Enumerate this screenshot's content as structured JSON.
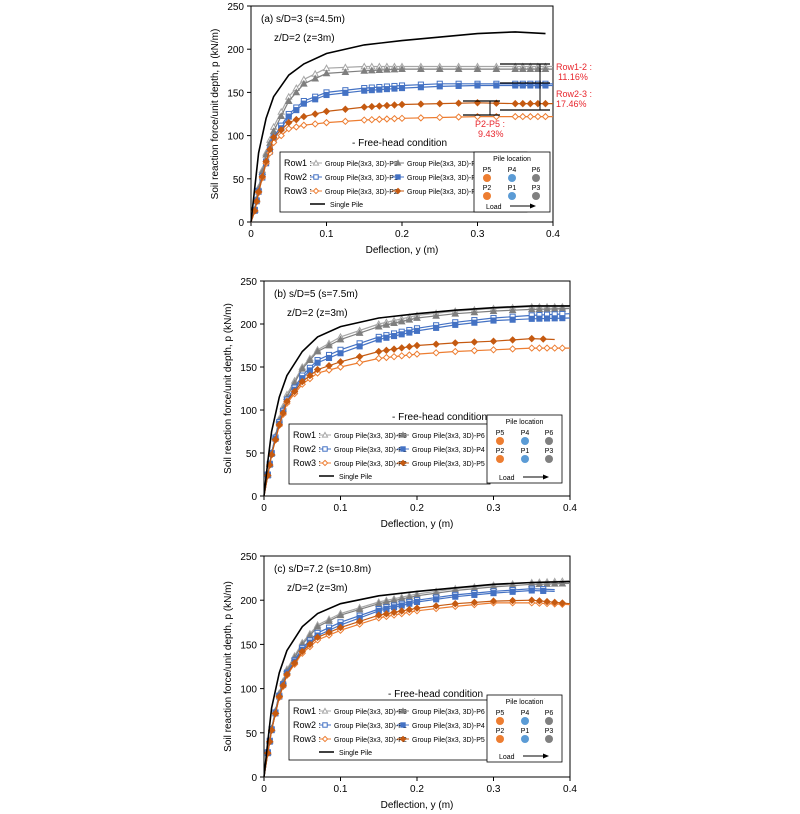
{
  "common": {
    "xlabel": "Deflection, y (m)",
    "ylabel": "Soil reaction force/unit depth, p (kN/m)",
    "condition": "- Free-head condition",
    "row_labels": [
      "Row1 :",
      "Row2 :",
      "Row3 :"
    ],
    "pile_location_title": "Pile location",
    "load_label": "Load",
    "pile_grid": [
      [
        "P5",
        "P4",
        "P6"
      ],
      [
        "P2",
        "P1",
        "P3"
      ]
    ],
    "colors": {
      "gray_light": "#a6a6a6",
      "gray_dark": "#7f7f7f",
      "blue": "#4472c4",
      "orange": "#ed7d31",
      "orange_dark": "#c55a11",
      "black": "#000000",
      "red": "#e8262d",
      "pile_orange": "#ed7d31",
      "pile_blue": "#5b9bd5",
      "pile_gray": "#808080"
    }
  },
  "panels": [
    {
      "title": "(a) s/D=3 (s=4.5m)",
      "depth": "z/D=2 (z=3m)",
      "annotations": [
        "Row1-2 :",
        "11.16%",
        "Row2-3 :",
        "17.46%",
        "P2-P5 :",
        "9.43%"
      ]
    },
    {
      "title": "(b) s/D=5 (s=7.5m)",
      "depth": "z/D=2 (z=3m)",
      "annotations": []
    },
    {
      "title": "(c) s/D=7.2 (s=10.8m)",
      "depth": "z/D=2 (z=3m)",
      "annotations": []
    }
  ],
  "chart_data": [
    {
      "type": "line",
      "title": "(a) s/D=3 (s=4.5m)",
      "xlabel": "Deflection, y (m)",
      "ylabel": "Soil reaction force/unit depth, p (kN/m)",
      "xlim": [
        0,
        0.4
      ],
      "ylim": [
        0,
        250
      ],
      "xticks": [
        "0",
        "0.1",
        "0.2",
        "0.3",
        "0.4"
      ],
      "yticks": [
        "0",
        "50",
        "100",
        "150",
        "200",
        "250"
      ],
      "series": [
        {
          "name": "Group Pile(3x3, 3D)-P3",
          "marker": "triangle-open",
          "color": "#a6a6a6",
          "x": [
            0,
            0.005,
            0.01,
            0.02,
            0.03,
            0.05,
            0.07,
            0.1,
            0.15,
            0.2,
            0.25,
            0.3,
            0.35,
            0.4
          ],
          "y": [
            0,
            15,
            40,
            80,
            110,
            145,
            165,
            178,
            180,
            180,
            180,
            180,
            180,
            180
          ]
        },
        {
          "name": "Group Pile(3x3, 3D)-P6",
          "marker": "triangle",
          "color": "#7f7f7f",
          "x": [
            0,
            0.005,
            0.01,
            0.02,
            0.03,
            0.05,
            0.07,
            0.1,
            0.15,
            0.2,
            0.25,
            0.3,
            0.35,
            0.4
          ],
          "y": [
            0,
            14,
            38,
            78,
            105,
            140,
            160,
            172,
            175,
            177,
            177,
            177,
            177,
            177
          ]
        },
        {
          "name": "Group Pile(3x3, 3D)-P1",
          "marker": "square-open",
          "color": "#4472c4",
          "x": [
            0,
            0.005,
            0.01,
            0.02,
            0.03,
            0.05,
            0.07,
            0.1,
            0.15,
            0.2,
            0.25,
            0.3,
            0.35,
            0.4
          ],
          "y": [
            0,
            14,
            36,
            70,
            98,
            125,
            140,
            150,
            155,
            158,
            160,
            160,
            160,
            160
          ]
        },
        {
          "name": "Group Pile(3x3, 3D)-P4",
          "marker": "square",
          "color": "#4472c4",
          "x": [
            0,
            0.005,
            0.01,
            0.02,
            0.03,
            0.05,
            0.07,
            0.1,
            0.15,
            0.2,
            0.25,
            0.3,
            0.35,
            0.4
          ],
          "y": [
            0,
            13,
            35,
            68,
            95,
            122,
            137,
            147,
            152,
            155,
            157,
            158,
            158,
            158
          ]
        },
        {
          "name": "Group Pile(3x3, 3D)-P2",
          "marker": "diamond-open",
          "color": "#ed7d31",
          "x": [
            0,
            0.005,
            0.01,
            0.02,
            0.03,
            0.05,
            0.07,
            0.1,
            0.15,
            0.2,
            0.25,
            0.3,
            0.35,
            0.4
          ],
          "y": [
            0,
            13,
            34,
            68,
            92,
            108,
            112,
            115,
            118,
            120,
            121,
            122,
            122,
            122
          ]
        },
        {
          "name": "Group Pile(3x3, 3D)-P5",
          "marker": "diamond",
          "color": "#c55a11",
          "x": [
            0,
            0.005,
            0.01,
            0.02,
            0.03,
            0.05,
            0.07,
            0.1,
            0.15,
            0.2,
            0.25,
            0.3,
            0.35,
            0.4
          ],
          "y": [
            0,
            13,
            35,
            70,
            98,
            115,
            122,
            128,
            133,
            136,
            137,
            138,
            137,
            137
          ]
        },
        {
          "name": "Single Pile",
          "marker": "none",
          "color": "#000000",
          "x": [
            0,
            0.005,
            0.01,
            0.02,
            0.03,
            0.05,
            0.07,
            0.1,
            0.15,
            0.2,
            0.25,
            0.3,
            0.35,
            0.39
          ],
          "y": [
            0,
            40,
            80,
            120,
            145,
            170,
            183,
            195,
            205,
            210,
            214,
            218,
            220,
            218
          ]
        }
      ]
    },
    {
      "type": "line",
      "title": "(b) s/D=5 (s=7.5m)",
      "xlabel": "Deflection, y (m)",
      "ylabel": "Soil reaction force/unit depth, p (kN/m)",
      "xlim": [
        0,
        0.4
      ],
      "ylim": [
        0,
        250
      ],
      "xticks": [
        "0",
        "0.1",
        "0.2",
        "0.3",
        "0.4"
      ],
      "yticks": [
        "0",
        "50",
        "100",
        "150",
        "200",
        "250"
      ],
      "series": [
        {
          "name": "Group Pile(3x3, 3D)-P3",
          "marker": "triangle-open",
          "color": "#a6a6a6",
          "x": [
            0,
            0.005,
            0.01,
            0.02,
            0.03,
            0.05,
            0.07,
            0.1,
            0.15,
            0.2,
            0.25,
            0.3,
            0.35,
            0.4
          ],
          "y": [
            0,
            25,
            50,
            90,
            118,
            150,
            170,
            185,
            200,
            210,
            215,
            218,
            220,
            220
          ]
        },
        {
          "name": "Group Pile(3x3, 3D)-P6",
          "marker": "triangle",
          "color": "#7f7f7f",
          "x": [
            0,
            0.005,
            0.01,
            0.02,
            0.03,
            0.05,
            0.07,
            0.1,
            0.15,
            0.2,
            0.25,
            0.3,
            0.35,
            0.4
          ],
          "y": [
            0,
            25,
            50,
            88,
            115,
            148,
            168,
            182,
            197,
            207,
            212,
            215,
            217,
            218
          ]
        },
        {
          "name": "Group Pile(3x3, 3D)-P1",
          "marker": "square-open",
          "color": "#4472c4",
          "x": [
            0,
            0.005,
            0.01,
            0.02,
            0.03,
            0.05,
            0.07,
            0.1,
            0.15,
            0.2,
            0.25,
            0.3,
            0.35,
            0.4
          ],
          "y": [
            0,
            25,
            50,
            86,
            112,
            140,
            158,
            170,
            185,
            195,
            202,
            207,
            210,
            212
          ]
        },
        {
          "name": "Group Pile(3x3, 3D)-P4",
          "marker": "square",
          "color": "#4472c4",
          "x": [
            0,
            0.005,
            0.01,
            0.02,
            0.03,
            0.05,
            0.07,
            0.1,
            0.15,
            0.2,
            0.25,
            0.3,
            0.35,
            0.4
          ],
          "y": [
            0,
            24,
            49,
            84,
            110,
            137,
            155,
            166,
            182,
            192,
            199,
            204,
            206,
            207
          ]
        },
        {
          "name": "Group Pile(3x3, 3D)-P2",
          "marker": "diamond-open",
          "color": "#ed7d31",
          "x": [
            0,
            0.005,
            0.01,
            0.02,
            0.03,
            0.05,
            0.07,
            0.1,
            0.15,
            0.2,
            0.25,
            0.3,
            0.35,
            0.4
          ],
          "y": [
            0,
            24,
            48,
            82,
            108,
            130,
            143,
            150,
            160,
            165,
            168,
            170,
            172,
            172
          ]
        },
        {
          "name": "Group Pile(3x3, 3D)-P5",
          "marker": "diamond",
          "color": "#c55a11",
          "x": [
            0,
            0.005,
            0.01,
            0.02,
            0.03,
            0.05,
            0.07,
            0.1,
            0.15,
            0.2,
            0.25,
            0.3,
            0.35,
            0.38
          ],
          "y": [
            0,
            24,
            48,
            83,
            110,
            133,
            147,
            156,
            168,
            175,
            178,
            180,
            183,
            182
          ]
        },
        {
          "name": "Single Pile",
          "marker": "none",
          "color": "#000000",
          "x": [
            0,
            0.005,
            0.01,
            0.02,
            0.03,
            0.05,
            0.07,
            0.1,
            0.15,
            0.2,
            0.25,
            0.3,
            0.35,
            0.4
          ],
          "y": [
            0,
            40,
            75,
            115,
            140,
            168,
            185,
            197,
            207,
            212,
            216,
            219,
            221,
            221
          ]
        }
      ]
    },
    {
      "type": "line",
      "title": "(c) s/D=7.2 (s=10.8m)",
      "xlabel": "Deflection, y (m)",
      "ylabel": "Soil reaction force/unit depth, p (kN/m)",
      "xlim": [
        0,
        0.4
      ],
      "ylim": [
        0,
        250
      ],
      "xticks": [
        "0",
        "0.1",
        "0.2",
        "0.3",
        "0.4"
      ],
      "yticks": [
        "0",
        "50",
        "100",
        "150",
        "200",
        "250"
      ],
      "series": [
        {
          "name": "Group Pile(3x3, 3D)-P3",
          "marker": "triangle-open",
          "color": "#a6a6a6",
          "x": [
            0,
            0.005,
            0.01,
            0.02,
            0.03,
            0.05,
            0.07,
            0.1,
            0.15,
            0.2,
            0.25,
            0.3,
            0.35,
            0.4
          ],
          "y": [
            0,
            28,
            55,
            95,
            122,
            152,
            172,
            185,
            198,
            207,
            213,
            217,
            220,
            222
          ]
        },
        {
          "name": "Group Pile(3x3, 3D)-P6",
          "marker": "triangle",
          "color": "#7f7f7f",
          "x": [
            0,
            0.005,
            0.01,
            0.02,
            0.03,
            0.05,
            0.07,
            0.1,
            0.15,
            0.2,
            0.25,
            0.3,
            0.35,
            0.4
          ],
          "y": [
            0,
            28,
            55,
            94,
            120,
            150,
            170,
            183,
            196,
            205,
            211,
            215,
            218,
            219
          ]
        },
        {
          "name": "Group Pile(3x3, 3D)-P1",
          "marker": "square-open",
          "color": "#4472c4",
          "x": [
            0,
            0.005,
            0.01,
            0.02,
            0.03,
            0.05,
            0.07,
            0.1,
            0.15,
            0.2,
            0.25,
            0.3,
            0.35,
            0.38
          ],
          "y": [
            0,
            28,
            54,
            92,
            118,
            146,
            163,
            175,
            190,
            200,
            206,
            210,
            213,
            212
          ]
        },
        {
          "name": "Group Pile(3x3, 3D)-P4",
          "marker": "square",
          "color": "#4472c4",
          "x": [
            0,
            0.005,
            0.01,
            0.02,
            0.03,
            0.05,
            0.07,
            0.1,
            0.15,
            0.2,
            0.25,
            0.3,
            0.35,
            0.38
          ],
          "y": [
            0,
            27,
            53,
            91,
            117,
            144,
            160,
            172,
            188,
            198,
            204,
            208,
            211,
            210
          ]
        },
        {
          "name": "Group Pile(3x3, 3D)-P2",
          "marker": "diamond-open",
          "color": "#ed7d31",
          "x": [
            0,
            0.005,
            0.01,
            0.02,
            0.03,
            0.05,
            0.07,
            0.1,
            0.15,
            0.2,
            0.25,
            0.3,
            0.35,
            0.4
          ],
          "y": [
            0,
            27,
            53,
            90,
            115,
            140,
            155,
            166,
            180,
            188,
            193,
            197,
            197,
            195
          ]
        },
        {
          "name": "Group Pile(3x3, 3D)-P5",
          "marker": "diamond",
          "color": "#c55a11",
          "x": [
            0,
            0.005,
            0.01,
            0.02,
            0.03,
            0.05,
            0.07,
            0.1,
            0.15,
            0.2,
            0.25,
            0.3,
            0.35,
            0.4
          ],
          "y": [
            0,
            27,
            53,
            91,
            116,
            142,
            158,
            169,
            183,
            191,
            196,
            199,
            200,
            196
          ]
        },
        {
          "name": "Single Pile",
          "marker": "none",
          "color": "#000000",
          "x": [
            0,
            0.005,
            0.01,
            0.02,
            0.03,
            0.05,
            0.07,
            0.1,
            0.15,
            0.2,
            0.25,
            0.3,
            0.35,
            0.4
          ],
          "y": [
            0,
            40,
            78,
            118,
            143,
            170,
            185,
            196,
            205,
            210,
            214,
            218,
            220,
            221
          ]
        }
      ]
    }
  ]
}
